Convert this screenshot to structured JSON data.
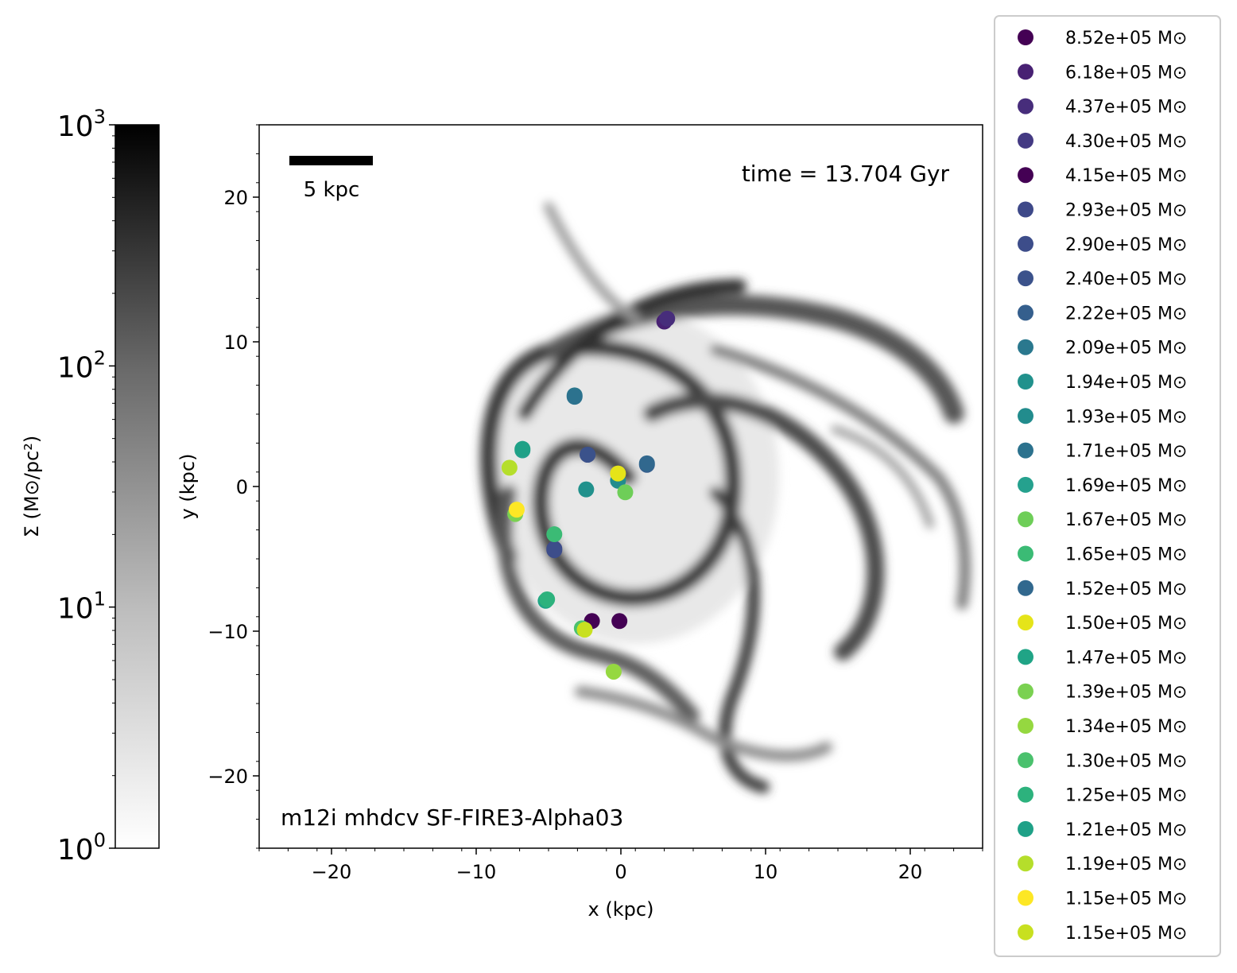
{
  "chart_data": {
    "type": "scatter",
    "xlabel": "x (kpc)",
    "ylabel": "y (kpc)",
    "xlim": [
      -25,
      25
    ],
    "ylim": [
      -25,
      25
    ],
    "xticks": [
      -20,
      -10,
      0,
      10,
      20
    ],
    "yticks": [
      -20,
      -10,
      0,
      10,
      20
    ],
    "xtick_labels": [
      "−20",
      "−10",
      "0",
      "10",
      "20"
    ],
    "ytick_labels": [
      "−20",
      "−10",
      "0",
      "10",
      "20"
    ],
    "annotations": {
      "time": "time = 13.704 Gyr",
      "simulation": "m12i mhdcv SF-FIRE3-Alpha03",
      "scalebar_label": "5 kpc",
      "scalebar_kpc": 5
    },
    "background": "gas surface density map (grayscale, log scale), spiral galaxy",
    "colorbar": {
      "label": "Σ (M⊙/pc²)",
      "scale": "log",
      "range": [
        1,
        1000
      ],
      "ticks": [
        {
          "value": 1,
          "base": "10",
          "exp": "0"
        },
        {
          "value": 10,
          "base": "10",
          "exp": "1"
        },
        {
          "value": 100,
          "base": "10",
          "exp": "2"
        },
        {
          "value": 1000,
          "base": "10",
          "exp": "3"
        }
      ],
      "cmap": "Greys"
    },
    "legend_placement": "right, outside plot",
    "series": [
      {
        "name": "8.52e+05 M⊙",
        "color": "#440154",
        "points": [
          [
            -2.0,
            -9.3
          ]
        ]
      },
      {
        "name": "6.18e+05 M⊙",
        "color": "#482173",
        "points": [
          [
            3.0,
            11.4
          ]
        ]
      },
      {
        "name": "4.37e+05 M⊙",
        "color": "#472d7b",
        "points": [
          [
            3.2,
            11.6
          ]
        ]
      },
      {
        "name": "4.30e+05 M⊙",
        "color": "#443a83",
        "points": [
          [
            -2.3,
            2.2
          ]
        ]
      },
      {
        "name": "4.15e+05 M⊙",
        "color": "#440154",
        "points": [
          [
            -0.1,
            -9.3
          ]
        ]
      },
      {
        "name": "2.93e+05 M⊙",
        "color": "#3e4989",
        "points": [
          [
            -4.6,
            -4.3
          ]
        ]
      },
      {
        "name": "2.90e+05 M⊙",
        "color": "#3d4d8a",
        "points": [
          [
            -4.6,
            -4.4
          ]
        ]
      },
      {
        "name": "2.40e+05 M⊙",
        "color": "#3b528b",
        "points": [
          [
            -2.3,
            2.2
          ]
        ]
      },
      {
        "name": "2.22e+05 M⊙",
        "color": "#355f8d",
        "points": [
          [
            1.8,
            1.5
          ]
        ]
      },
      {
        "name": "2.09e+05 M⊙",
        "color": "#2a788e",
        "points": [
          [
            -3.2,
            6.3
          ]
        ]
      },
      {
        "name": "1.94e+05 M⊙",
        "color": "#21918c",
        "points": [
          [
            -2.4,
            -0.2
          ]
        ]
      },
      {
        "name": "1.93e+05 M⊙",
        "color": "#228c8d",
        "points": [
          [
            -0.2,
            0.4
          ]
        ]
      },
      {
        "name": "1.71e+05 M⊙",
        "color": "#2c728e",
        "points": [
          [
            -3.2,
            6.2
          ]
        ]
      },
      {
        "name": "1.69e+05 M⊙",
        "color": "#25a18e",
        "points": [
          [
            -6.8,
            2.5
          ]
        ]
      },
      {
        "name": "1.67e+05 M⊙",
        "color": "#6ece58",
        "points": [
          [
            0.3,
            -0.4
          ]
        ]
      },
      {
        "name": "1.65e+05 M⊙",
        "color": "#3bbb75",
        "points": [
          [
            -4.6,
            -3.3
          ]
        ]
      },
      {
        "name": "1.52e+05 M⊙",
        "color": "#31688e",
        "points": [
          [
            1.8,
            1.6
          ]
        ]
      },
      {
        "name": "1.50e+05 M⊙",
        "color": "#e5e419",
        "points": [
          [
            -0.2,
            0.9
          ]
        ]
      },
      {
        "name": "1.47e+05 M⊙",
        "color": "#20a486",
        "points": [
          [
            -5.2,
            -7.9
          ]
        ]
      },
      {
        "name": "1.39e+05 M⊙",
        "color": "#7ad151",
        "points": [
          [
            -7.3,
            -1.9
          ]
        ]
      },
      {
        "name": "1.34e+05 M⊙",
        "color": "#95d840",
        "points": [
          [
            -0.5,
            -12.8
          ]
        ]
      },
      {
        "name": "1.30e+05 M⊙",
        "color": "#4ac16d",
        "points": [
          [
            -2.7,
            -9.8
          ]
        ]
      },
      {
        "name": "1.25e+05 M⊙",
        "color": "#2db27d",
        "points": [
          [
            -5.1,
            -7.8
          ]
        ]
      },
      {
        "name": "1.21e+05 M⊙",
        "color": "#1fa187",
        "points": [
          [
            -6.8,
            2.6
          ]
        ]
      },
      {
        "name": "1.19e+05 M⊙",
        "color": "#b5de2b",
        "points": [
          [
            -7.7,
            1.3
          ]
        ]
      },
      {
        "name": "1.15e+05 M⊙",
        "color": "#fde725",
        "points": [
          [
            -7.2,
            -1.6
          ]
        ]
      },
      {
        "name": "1.15e+05 M⊙",
        "color": "#c8e020",
        "points": [
          [
            -2.5,
            -9.9
          ]
        ]
      }
    ]
  }
}
